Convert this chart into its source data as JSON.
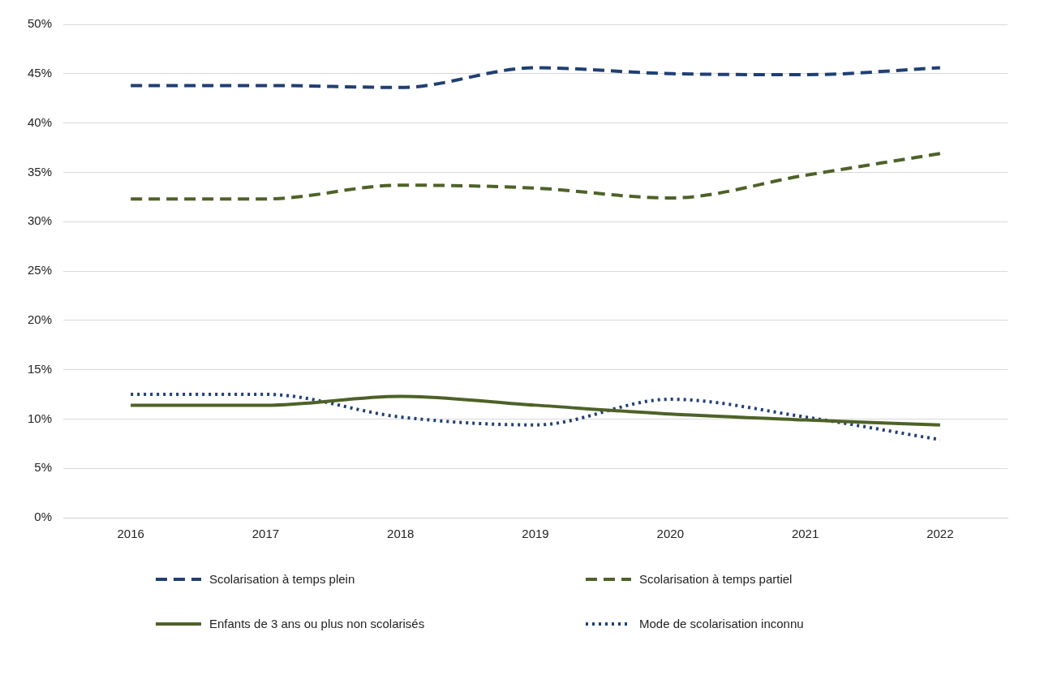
{
  "chart_data": {
    "type": "line",
    "categories": [
      "2016",
      "2017",
      "2018",
      "2019",
      "2020",
      "2021",
      "2022"
    ],
    "series": [
      {
        "name": "Scolarisation à temps plein",
        "color": "#203f73",
        "line_style": "dashed",
        "values": [
          43.8,
          43.8,
          43.6,
          45.6,
          45.0,
          44.9,
          45.6
        ]
      },
      {
        "name": "Scolarisation à temps partiel",
        "color": "#4e6228",
        "line_style": "dashed",
        "values": [
          32.3,
          32.3,
          33.7,
          33.4,
          32.4,
          34.7,
          36.9
        ]
      },
      {
        "name": "Enfants de 3 ans ou plus non scolarisés",
        "color": "#4e6228",
        "line_style": "solid",
        "values": [
          11.4,
          11.4,
          12.3,
          11.4,
          10.5,
          9.9,
          9.4
        ]
      },
      {
        "name": "Mode de scolarisation inconnu",
        "color": "#203f73",
        "line_style": "dotted",
        "values": [
          12.5,
          12.5,
          10.2,
          9.4,
          12.0,
          10.2,
          7.9
        ]
      }
    ],
    "ylim": [
      0,
      50
    ],
    "yticks": [
      {
        "value": 0,
        "label": "0%"
      },
      {
        "value": 5,
        "label": "5%"
      },
      {
        "value": 10,
        "label": "10%"
      },
      {
        "value": 15,
        "label": "15%"
      },
      {
        "value": 20,
        "label": "20%"
      },
      {
        "value": 25,
        "label": "25%"
      },
      {
        "value": 30,
        "label": "30%"
      },
      {
        "value": 35,
        "label": "35%"
      },
      {
        "value": 40,
        "label": "40%"
      },
      {
        "value": 45,
        "label": "45%"
      },
      {
        "value": 50,
        "label": "50%"
      }
    ],
    "grid": "y",
    "legend": "bottom",
    "marker": "none"
  }
}
